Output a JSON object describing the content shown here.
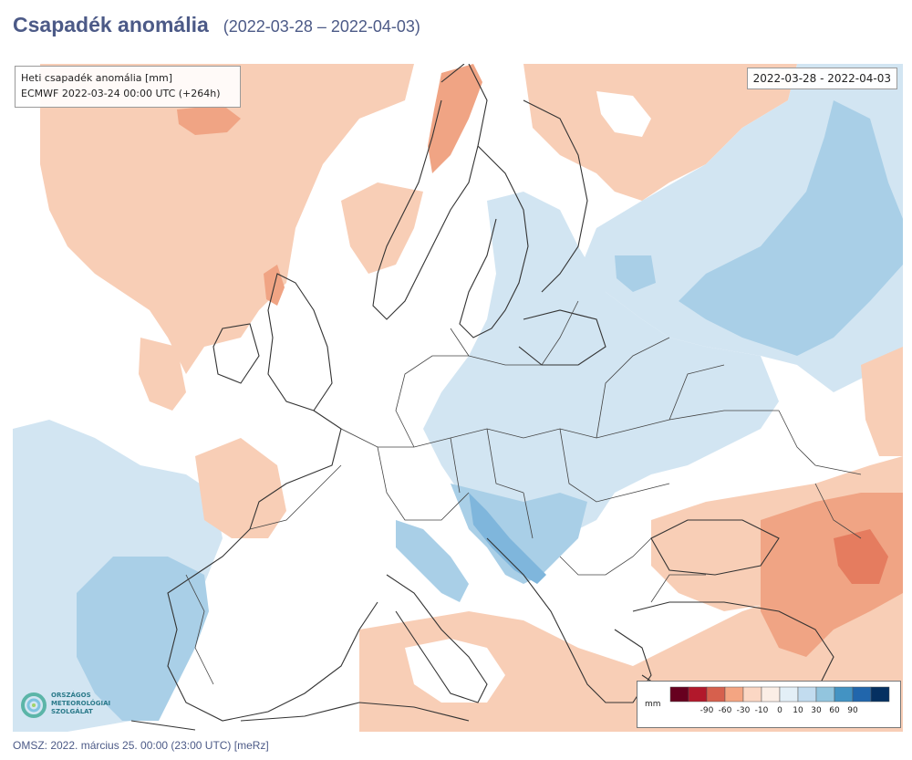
{
  "header": {
    "title": "Csapadék anomália",
    "date_range": "(2022-03-28 – 2022-04-03)"
  },
  "map": {
    "info_line1": "Heti csapadék anomália [mm]",
    "info_line2": "ECMWF 2022-03-24 00:00 UTC (+264h)",
    "date_box": "2022-03-28 - 2022-04-03",
    "region": "Europe",
    "colors": {
      "light_orange": "#f8ceb6",
      "orange": "#f0a484",
      "dark_orange": "#e57c5f",
      "light_blue": "#d2e5f2",
      "blue": "#a9cfe7",
      "mid_blue": "#7fb6dc",
      "white": "#ffffff"
    }
  },
  "legend": {
    "unit": "mm",
    "colors": [
      "#67001f",
      "#b2182b",
      "#d6604d",
      "#f4a582",
      "#fbd7c4",
      "#fbeee6",
      "#e3eff7",
      "#c2dcef",
      "#92c5de",
      "#4393c3",
      "#2166ac",
      "#053061"
    ],
    "labels": [
      "-90",
      "-60",
      "-30",
      "-10",
      "0",
      "10",
      "30",
      "60",
      "90"
    ]
  },
  "logo": {
    "line1": "ORSZÁGOS",
    "line2": "METEOROLÓGIAI",
    "line3": "SZOLGÁLAT",
    "icon": "omsz-swirl-logo-icon"
  },
  "footer": {
    "text": "OMSZ: 2022. március 25. 00:00 (23:00 UTC) [meRz]"
  }
}
